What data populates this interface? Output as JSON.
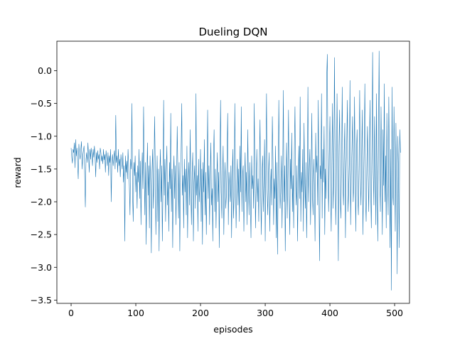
{
  "chart_data": {
    "type": "line",
    "title": "Dueling DQN",
    "xlabel": "episodes",
    "ylabel": "reward",
    "xlim": [
      -22,
      523
    ],
    "ylim": [
      -3.55,
      0.45
    ],
    "xticks": [
      0,
      100,
      200,
      300,
      400,
      500
    ],
    "xtick_labels": [
      "0",
      "100",
      "200",
      "300",
      "400",
      "500"
    ],
    "yticks": [
      -3.5,
      -3.0,
      -2.5,
      -2.0,
      -1.5,
      -1.0,
      -0.5,
      0.0
    ],
    "ytick_labels": [
      "−3.5",
      "−3.0",
      "−2.5",
      "−2.0",
      "−1.5",
      "−1.0",
      "−0.5",
      "0.0"
    ],
    "grid": false,
    "legend": "none",
    "line_color": "#1f77b4",
    "series": [
      {
        "x_start": 0,
        "x_step": 1,
        "values": [
          -1.18,
          -1.32,
          -1.41,
          -1.2,
          -1.25,
          -1.1,
          -1.48,
          -1.05,
          -1.3,
          -1.18,
          -1.4,
          -1.65,
          -1.12,
          -1.28,
          -1.35,
          -1.2,
          -1.08,
          -1.5,
          -1.3,
          -1.22,
          -1.15,
          -1.6,
          -2.08,
          -1.35,
          -1.25,
          -1.4,
          -1.1,
          -1.3,
          -1.55,
          -1.2,
          -1.35,
          -1.18,
          -1.28,
          -1.45,
          -1.2,
          -1.32,
          -1.15,
          -1.3,
          -1.62,
          -1.25,
          -1.4,
          -1.22,
          -1.35,
          -1.28,
          -1.5,
          -1.18,
          -1.25,
          -1.38,
          -1.3,
          -1.42,
          -1.2,
          -1.36,
          -1.28,
          -1.55,
          -1.22,
          -1.34,
          -1.45,
          -1.25,
          -1.6,
          -1.3,
          -1.4,
          -1.2,
          -2.0,
          -1.38,
          -1.28,
          -1.45,
          -1.32,
          -1.22,
          -1.5,
          -0.68,
          -1.4,
          -1.3,
          -1.55,
          -1.2,
          -1.45,
          -1.35,
          -1.62,
          -1.28,
          -1.4,
          -1.5,
          -1.25,
          -1.7,
          -1.45,
          -2.6,
          -1.3,
          -1.55,
          -1.38,
          -1.65,
          -1.2,
          -1.48,
          -1.75,
          -2.2,
          -1.35,
          -1.5,
          -0.5,
          -1.9,
          -2.3,
          -1.4,
          -1.6,
          -1.3,
          -1.85,
          -1.55,
          -2.1,
          -1.45,
          -1.7,
          -1.2,
          -1.95,
          -1.38,
          -2.35,
          -1.6,
          -1.25,
          -1.8,
          -0.55,
          -1.5,
          -2.2,
          -1.4,
          -2.65,
          -1.7,
          -1.1,
          -1.9,
          -1.45,
          -2.4,
          -1.3,
          -1.75,
          -2.78,
          -1.55,
          -1.2,
          -2.1,
          -1.65,
          -0.7,
          -1.4,
          -2.5,
          -1.85,
          -1.3,
          -2.3,
          -1.5,
          -2.75,
          -1.6,
          -1.2,
          -2.0,
          -1.45,
          -2.6,
          -1.75,
          -0.45,
          -1.9,
          -1.35,
          -2.3,
          -1.55,
          -1.15,
          -2.05,
          -1.7,
          -2.45,
          -1.4,
          -1.8,
          -0.65,
          -2.15,
          -1.5,
          -2.7,
          -1.6,
          -1.3,
          -1.95,
          -1.45,
          -2.35,
          -1.7,
          -0.85,
          -1.55,
          -2.25,
          -1.4,
          -2.75,
          -1.65,
          -1.25,
          -0.5,
          -1.9,
          -1.6,
          -2.4,
          -1.35,
          -1.85,
          -1.5,
          -2.2,
          -1.15,
          -2.55,
          -1.7,
          -1.4,
          -2.05,
          -0.9,
          -1.8,
          -2.35,
          -1.55,
          -1.25,
          -2.6,
          -1.7,
          -1.45,
          -2.1,
          -0.35,
          -1.9,
          -1.6,
          -2.45,
          -1.35,
          -2.0,
          -1.75,
          -1.2,
          -2.3,
          -1.5,
          -2.65,
          -1.4,
          -1.85,
          -1.05,
          -2.2,
          -1.55,
          -2.5,
          -1.7,
          -0.6,
          -1.95,
          -1.45,
          -2.35,
          -1.6,
          -1.1,
          -2.05,
          -1.8,
          -2.6,
          -1.35,
          -0.9,
          -2.15,
          -1.5,
          -2.4,
          -1.7,
          -1.25,
          -2.0,
          -1.55,
          -2.7,
          -1.45,
          -0.45,
          -1.85,
          -2.25,
          -1.6,
          -1.15,
          -2.5,
          -1.75,
          -1.4,
          -2.1,
          -1.9,
          -1.3,
          -0.65,
          -2.35,
          -1.55,
          -1.8,
          -2.0,
          -1.45,
          -2.55,
          -1.65,
          -1.2,
          -2.25,
          -1.9,
          -0.5,
          -1.6,
          -2.4,
          -1.75,
          -1.35,
          -2.05,
          -1.5,
          -2.3,
          -1.15,
          -1.85,
          -0.55,
          -2.15,
          -1.6,
          -1.45,
          -2.45,
          -1.75,
          -1.25,
          -2.0,
          -1.55,
          -2.35,
          -0.9,
          -1.7,
          -2.2,
          -1.4,
          -1.95,
          -2.55,
          -1.3,
          -1.8,
          -1.6,
          -2.1,
          -0.5,
          -1.5,
          -2.4,
          -1.75,
          -1.2,
          -2.0,
          -1.65,
          -2.3,
          -1.4,
          -0.75,
          -1.9,
          -2.5,
          -1.55,
          -1.3,
          -2.15,
          -1.7,
          -1.05,
          -2.6,
          -1.45,
          -0.35,
          -1.85,
          -2.2,
          -1.6,
          -1.25,
          -2.45,
          -1.8,
          -1.5,
          -2.05,
          -0.7,
          -1.35,
          -2.35,
          -1.65,
          -1.95,
          -1.15,
          -2.55,
          -1.4,
          -2.8,
          -1.75,
          -0.45,
          -1.55,
          -2.1,
          -1.85,
          -1.3,
          -2.4,
          -1.65,
          -0.3,
          -2.0,
          -1.45,
          -2.75,
          -1.7,
          -1.1,
          -2.25,
          -1.55,
          -0.6,
          -1.9,
          -2.5,
          -1.35,
          -1.8,
          -0.95,
          -2.15,
          -1.6,
          -2.4,
          -1.25,
          -0.55,
          -1.75,
          -2.05,
          -1.45,
          -2.6,
          -1.7,
          -1.15,
          -1.95,
          -0.4,
          -2.3,
          -1.55,
          -1.85,
          -1.2,
          -2.45,
          -0.8,
          -1.65,
          -2.1,
          -1.4,
          -2.55,
          -1.75,
          -0.25,
          -2.0,
          -1.5,
          -1.2,
          -2.35,
          -1.6,
          -0.65,
          -1.9,
          -2.2,
          -1.35,
          -1.75,
          -2.6,
          -0.95,
          -1.55,
          -1.3,
          -2.05,
          -0.45,
          -1.85,
          -2.9,
          -1.45,
          -1.65,
          -0.35,
          -2.25,
          -1.2,
          -1.7,
          -0.85,
          -2.5,
          -1.5,
          -1.95,
          -0.1,
          0.25,
          -1.6,
          -2.15,
          -1.3,
          -0.7,
          -1.8,
          -2.45,
          -1.4,
          -0.5,
          -2.1,
          -1.65,
          0.2,
          -1.25,
          -2.35,
          -1.75,
          -0.35,
          -1.5,
          -2.9,
          -1.15,
          -0.6,
          -1.95,
          -2.25,
          -1.45,
          -0.25,
          -1.7,
          -2.05,
          -1.3,
          -0.8,
          -2.55,
          -1.55,
          -1.1,
          -0.45,
          -2.15,
          -1.85,
          -1.4,
          -0.15,
          -2.35,
          -1.6,
          -1.2,
          -0.7,
          -2.0,
          -1.75,
          -0.4,
          -1.5,
          -2.45,
          -1.25,
          -0.9,
          -1.9,
          -2.2,
          -1.45,
          -0.3,
          -1.65,
          -2.05,
          -1.35,
          -0.6,
          -2.5,
          -1.75,
          -1.1,
          -0.2,
          -1.95,
          -2.3,
          -1.5,
          -0.85,
          -1.6,
          -2.15,
          -1.3,
          -0.45,
          -1.8,
          -2.4,
          -1.2,
          0.28,
          -1.55,
          -2.05,
          -0.7,
          -1.4,
          -2.35,
          -0.35,
          -1.85,
          -2.6,
          -1.1,
          0.3,
          -1.65,
          -2.15,
          -0.55,
          -1.45,
          -2.5,
          -0.9,
          -1.75,
          -0.2,
          -2.0,
          -1.3,
          -2.4,
          -0.65,
          -1.6,
          -2.2,
          -0.4,
          -1.5,
          -2.7,
          -1.2,
          -3.35,
          -0.25,
          -1.85,
          -2.05,
          -0.55,
          -1.4,
          -2.45,
          -0.8,
          -1.7,
          -3.1,
          -1.0,
          -1.55,
          -2.7,
          -0.9,
          -1.25
        ]
      }
    ]
  }
}
